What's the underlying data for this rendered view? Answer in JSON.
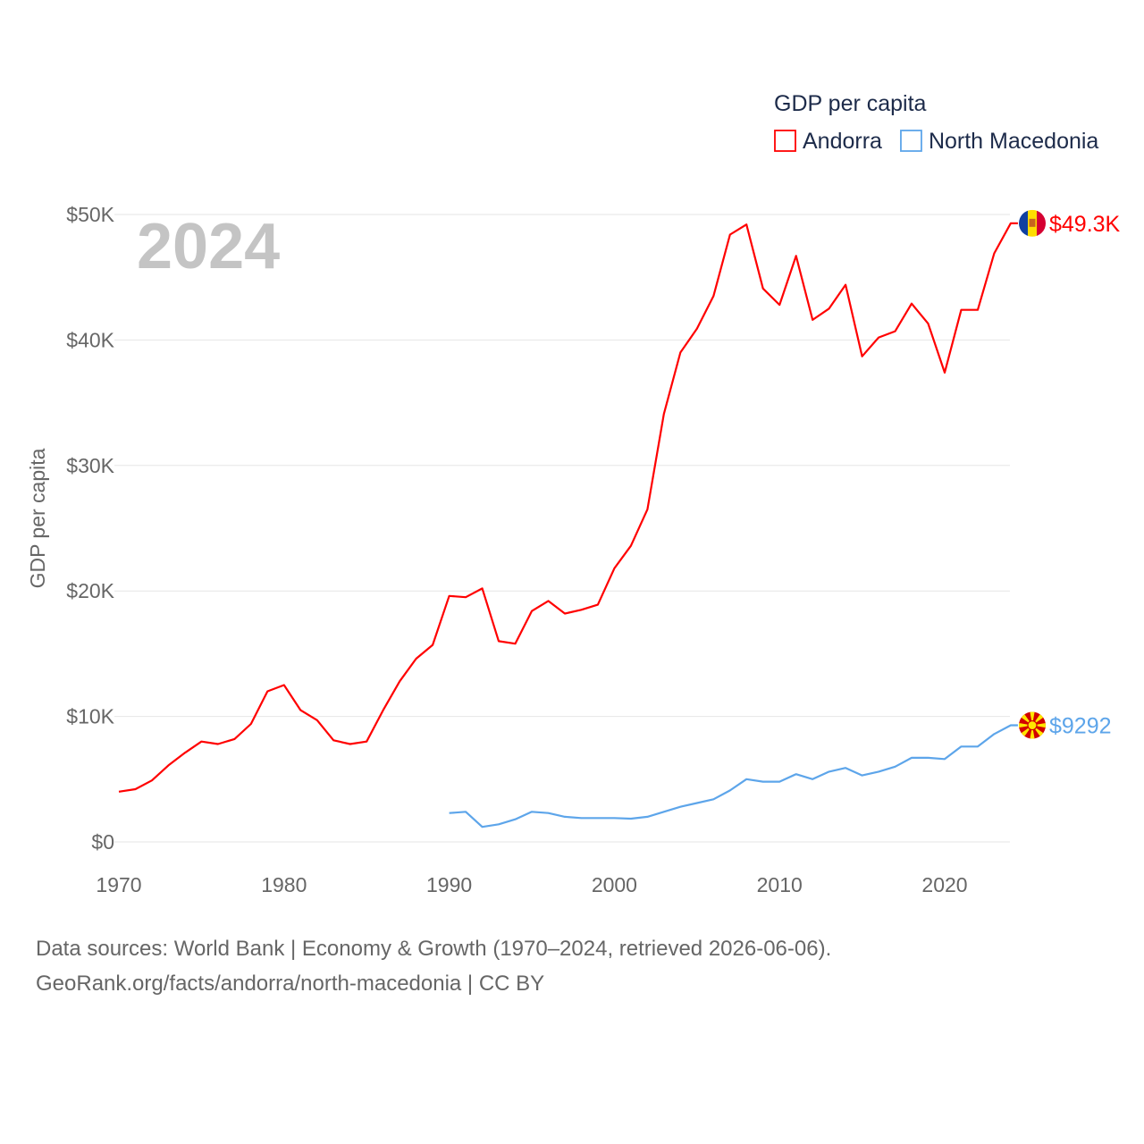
{
  "chart_data": {
    "type": "line",
    "title": "GDP per capita",
    "ylabel": "GDP per capita",
    "xlabel": "",
    "year_label": "2024",
    "xlim": [
      1970,
      2024
    ],
    "ylim": [
      0,
      50000
    ],
    "x_ticks": [
      1970,
      1980,
      1990,
      2000,
      2010,
      2020
    ],
    "y_ticks": [
      {
        "value": 0,
        "label": "$0"
      },
      {
        "value": 10000,
        "label": "$10K"
      },
      {
        "value": 20000,
        "label": "$20K"
      },
      {
        "value": 30000,
        "label": "$30K"
      },
      {
        "value": 40000,
        "label": "$40K"
      },
      {
        "value": 50000,
        "label": "$50K"
      }
    ],
    "grid": true,
    "legend": {
      "title": "GDP per capita",
      "placement": "top-right"
    },
    "series": [
      {
        "name": "Andorra",
        "color": "#ff0000",
        "end_label": "$49.3K",
        "flag": "andorra-flag",
        "start_year": 1970,
        "values": [
          4000,
          4200,
          4900,
          6100,
          7100,
          8000,
          7800,
          8200,
          9400,
          12000,
          12500,
          10500,
          9700,
          8100,
          7800,
          8000,
          10500,
          12800,
          14600,
          15700,
          19600,
          19500,
          20200,
          16000,
          15800,
          18400,
          19200,
          18200,
          18500,
          18900,
          21800,
          23600,
          26500,
          34100,
          39000,
          40900,
          43500,
          48400,
          49200,
          44100,
          42800,
          46700,
          41600,
          42500,
          44400,
          38700,
          40200,
          40700,
          42900,
          41300,
          37400,
          42400,
          42400,
          46900,
          49300
        ]
      },
      {
        "name": "North Macedonia",
        "color": "#5da5ea",
        "end_label": "$9292",
        "flag": "north-macedonia-flag",
        "start_year": 1990,
        "values": [
          2300,
          2400,
          1200,
          1400,
          1800,
          2400,
          2300,
          2000,
          1900,
          1900,
          1900,
          1850,
          2000,
          2400,
          2800,
          3100,
          3400,
          4100,
          5000,
          4800,
          4800,
          5400,
          5000,
          5600,
          5900,
          5300,
          5600,
          6000,
          6700,
          6700,
          6600,
          7600,
          7600,
          8600,
          9292
        ]
      }
    ]
  },
  "footer": {
    "line1": "Data sources: World Bank | Economy & Growth (1970–2024, retrieved 2026-06-06).",
    "line2": "GeoRank.org/facts/andorra/north-macedonia | CC BY"
  }
}
